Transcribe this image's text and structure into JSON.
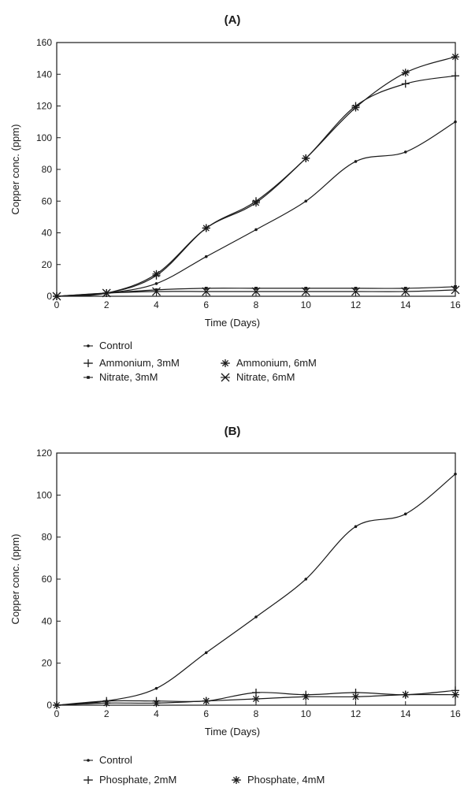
{
  "chart_data": [
    {
      "type": "line",
      "title": "(A)",
      "xlabel": "Time (Days)",
      "ylabel": "Copper conc. (ppm)",
      "xlim": [
        0,
        16
      ],
      "ylim": [
        0,
        160
      ],
      "xticks": [
        0,
        2,
        4,
        6,
        8,
        10,
        12,
        14,
        16
      ],
      "yticks": [
        0,
        20,
        40,
        60,
        80,
        100,
        120,
        140,
        160
      ],
      "grid": false,
      "legend_position": "bottom",
      "x": [
        0,
        2,
        4,
        6,
        8,
        10,
        12,
        14,
        16
      ],
      "series": [
        {
          "name": "Control",
          "marker": "dot",
          "values": [
            0,
            2,
            8,
            25,
            42,
            60,
            85,
            91,
            110
          ]
        },
        {
          "name": "Ammonium, 3mM",
          "marker": "plus",
          "values": [
            0,
            2,
            13,
            43,
            60,
            87,
            120,
            134,
            139
          ]
        },
        {
          "name": "Ammonium, 6mM",
          "marker": "asterisk",
          "values": [
            0,
            2,
            14,
            43,
            59,
            87,
            119,
            141,
            151
          ]
        },
        {
          "name": "Nitrate, 3mM",
          "marker": "square",
          "values": [
            0,
            2,
            4,
            5,
            5,
            5,
            5,
            5,
            6
          ]
        },
        {
          "name": "Nitrate, 6mM",
          "marker": "cross",
          "values": [
            0,
            2,
            3,
            3,
            3,
            3,
            3,
            3,
            4
          ]
        }
      ]
    },
    {
      "type": "line",
      "title": "(B)",
      "xlabel": "Time (Days)",
      "ylabel": "Copper conc. (ppm)",
      "xlim": [
        0,
        16
      ],
      "ylim": [
        0,
        120
      ],
      "xticks": [
        0,
        2,
        4,
        6,
        8,
        10,
        12,
        14,
        16
      ],
      "yticks": [
        0,
        20,
        40,
        60,
        80,
        100,
        120
      ],
      "grid": false,
      "legend_position": "bottom",
      "x": [
        0,
        2,
        4,
        6,
        8,
        10,
        12,
        14,
        16
      ],
      "series": [
        {
          "name": "Control",
          "marker": "dot",
          "values": [
            0,
            2,
            8,
            25,
            42,
            60,
            85,
            91,
            110
          ]
        },
        {
          "name": "Phosphate, 2mM",
          "marker": "plus",
          "values": [
            0,
            2,
            2,
            2,
            6,
            5,
            6,
            5,
            7
          ]
        },
        {
          "name": "Phosphate, 4mM",
          "marker": "asterisk",
          "values": [
            0,
            1,
            1,
            2,
            3,
            4,
            4,
            5,
            5
          ]
        }
      ]
    }
  ]
}
